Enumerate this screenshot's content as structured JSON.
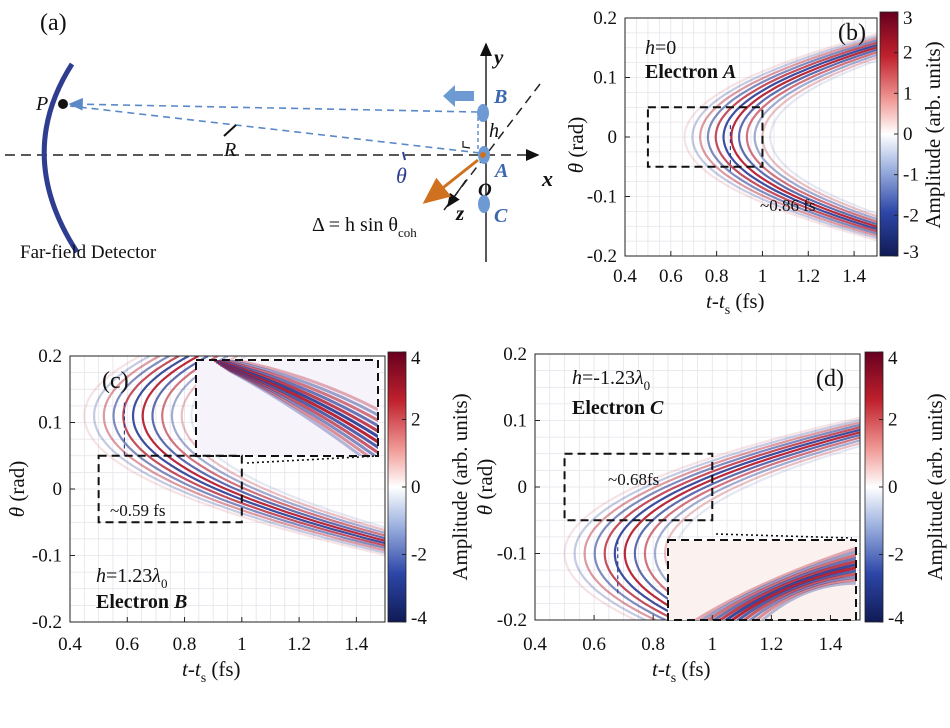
{
  "panel_a": {
    "label": "(a)",
    "point_p": "P",
    "radius": "R",
    "theta": "θ",
    "h": "h",
    "axis_x": "x",
    "axis_y": "y",
    "axis_z": "z",
    "origin": "O",
    "electron_a": "A",
    "electron_b": "B",
    "electron_c": "C",
    "delta_eq": "Δ = h sin θ",
    "delta_sub": "coh",
    "detector": "Far-field Detector"
  },
  "colors": {
    "positive": "#b2182b",
    "negative": "#2c3f96",
    "detector": "#2e3d8f",
    "electron": "#6d9ad3",
    "delta_arrow": "#d0711f",
    "ray": "#5b89c8"
  },
  "chart_data": [
    {
      "panel": "(b)",
      "type": "heatmap",
      "h_label": "h=0",
      "electron_label": "Electron A",
      "xlabel": "t-ts (fs)",
      "ylabel": "θ (rad)",
      "xlim": [
        0.4,
        1.5
      ],
      "ylim": [
        -0.2,
        0.2
      ],
      "xticks": [
        "0.4",
        "0.6",
        "0.8",
        "1",
        "1.2",
        "1.4"
      ],
      "yticks": [
        "0.2",
        "0.1",
        "0",
        "-0.1",
        "-0.2"
      ],
      "colorbar": {
        "label": "Amplitude (arb. units)",
        "ticks": [
          "3",
          "2",
          "1",
          "0",
          "-1",
          "-2",
          "-3"
        ],
        "range": [
          -3,
          3
        ]
      },
      "annotation": "~0.86 fs",
      "vertex_t": 0.8,
      "curvature": 28,
      "box": {
        "x": [
          0.5,
          1.0
        ],
        "y": [
          -0.05,
          0.05
        ]
      },
      "marker_t": 0.86,
      "grid": true
    },
    {
      "panel": "(c)",
      "type": "heatmap",
      "h_label": "h=1.23λ0",
      "electron_label": "Electron B",
      "xlabel": "t-ts (fs)",
      "ylabel": "θ (rad)",
      "xlim": [
        0.4,
        1.5
      ],
      "ylim": [
        -0.2,
        0.2
      ],
      "xticks": [
        "0.4",
        "0.6",
        "0.8",
        "1",
        "1.2",
        "1.4"
      ],
      "yticks": [
        "0.2",
        "0.1",
        "0",
        "-0.1",
        "-0.2"
      ],
      "colorbar": {
        "label": "Amplitude (arb. units)",
        "ticks": [
          "4",
          "2",
          "0",
          "-2",
          "-4"
        ],
        "range": [
          -4,
          4
        ]
      },
      "annotation": "~0.59 fs",
      "vertex_t": 0.59,
      "vertex_theta": 0.11,
      "curvature": 24,
      "box": {
        "x": [
          0.5,
          1.0
        ],
        "y": [
          -0.05,
          0.05
        ]
      },
      "marker_t": 0.59,
      "grid": true
    },
    {
      "panel": "(d)",
      "type": "heatmap",
      "h_label": "h=-1.23λ0",
      "electron_label": "Electron C",
      "xlabel": "t-ts (fs)",
      "ylabel": "θ (rad)",
      "xlim": [
        0.4,
        1.5
      ],
      "ylim": [
        -0.2,
        0.2
      ],
      "xticks": [
        "0.4",
        "0.6",
        "0.8",
        "1",
        "1.2",
        "1.4"
      ],
      "yticks": [
        "0.2",
        "0.1",
        "0",
        "-0.1",
        "-0.2"
      ],
      "colorbar": {
        "label": "Amplitude (arb. units)",
        "ticks": [
          "4",
          "2",
          "0",
          "-2",
          "-4"
        ],
        "range": [
          -4,
          4
        ]
      },
      "annotation": "~0.68fs",
      "vertex_t": 0.64,
      "vertex_theta": -0.1,
      "curvature": 24,
      "box": {
        "x": [
          0.5,
          1.0
        ],
        "y": [
          -0.05,
          0.05
        ]
      },
      "marker_t": 0.68,
      "grid": true
    }
  ]
}
